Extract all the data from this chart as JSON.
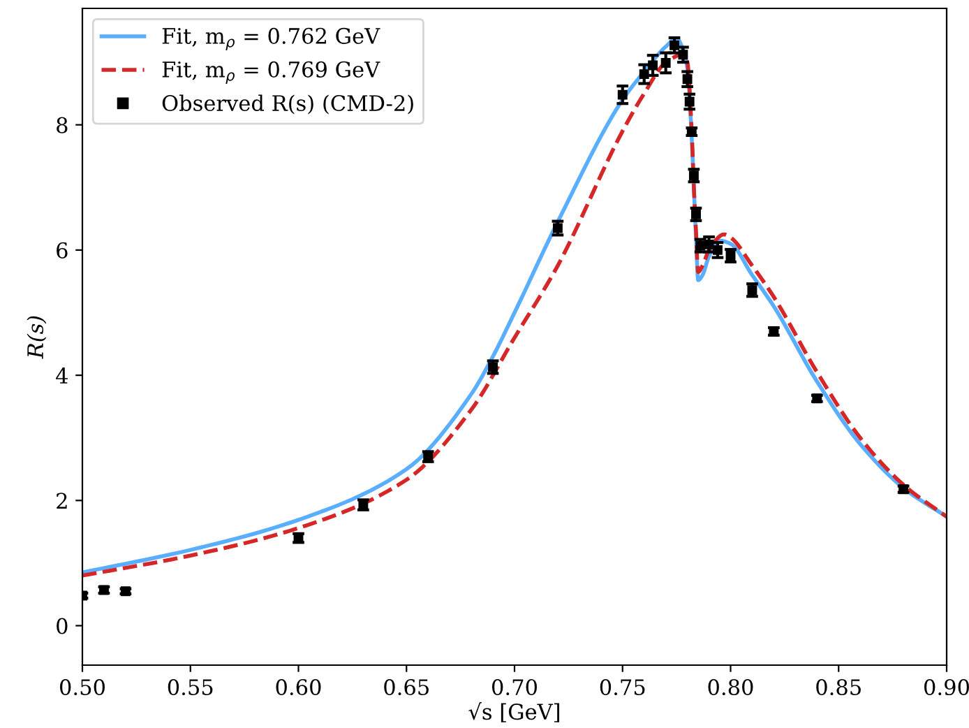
{
  "chart_data": {
    "type": "line",
    "xlabel": "√s [GeV]",
    "ylabel": "R(s)",
    "xlim": [
      0.5,
      0.9
    ],
    "ylim": [
      -0.63,
      9.86
    ],
    "xticks": [
      {
        "value": 0.5,
        "label": "0.50"
      },
      {
        "value": 0.55,
        "label": "0.55"
      },
      {
        "value": 0.6,
        "label": "0.60"
      },
      {
        "value": 0.65,
        "label": "0.65"
      },
      {
        "value": 0.7,
        "label": "0.70"
      },
      {
        "value": 0.75,
        "label": "0.75"
      },
      {
        "value": 0.8,
        "label": "0.80"
      },
      {
        "value": 0.85,
        "label": "0.85"
      },
      {
        "value": 0.9,
        "label": "0.90"
      }
    ],
    "yticks": [
      0,
      2,
      4,
      6,
      8
    ],
    "grid": false,
    "legend": "top left",
    "series": [
      {
        "name": "Fit, m$_{ρ}$ = 0.762 GeV",
        "color": "#5aaeff",
        "line_style": "solid",
        "marker": "none",
        "x": [
          0.5,
          0.55,
          0.6,
          0.65,
          0.68,
          0.69,
          0.7,
          0.72,
          0.75,
          0.76,
          0.77,
          0.775,
          0.778,
          0.78,
          0.782,
          0.783,
          0.784,
          0.785,
          0.787,
          0.79,
          0.795,
          0.8,
          0.81,
          0.82,
          0.84,
          0.86,
          0.88,
          0.9
        ],
        "values": [
          0.85,
          1.21,
          1.69,
          2.5,
          3.7,
          4.3,
          5.0,
          6.45,
          8.4,
          8.85,
          9.25,
          9.38,
          9.2,
          8.9,
          7.8,
          7.0,
          6.2,
          5.52,
          5.6,
          5.9,
          6.15,
          6.1,
          5.6,
          5.1,
          3.9,
          2.9,
          2.2,
          1.74
        ]
      },
      {
        "name": "Fit, m$_{ρ}$ = 0.769 GeV",
        "color": "#d62728",
        "line_style": "dashed",
        "marker": "none",
        "x": [
          0.5,
          0.55,
          0.6,
          0.65,
          0.68,
          0.7,
          0.72,
          0.75,
          0.76,
          0.77,
          0.775,
          0.778,
          0.78,
          0.782,
          0.783,
          0.784,
          0.785,
          0.787,
          0.79,
          0.797,
          0.8,
          0.81,
          0.82,
          0.84,
          0.86,
          0.88,
          0.9
        ],
        "values": [
          0.8,
          1.12,
          1.56,
          2.33,
          3.45,
          4.6,
          5.75,
          7.9,
          8.5,
          9.0,
          9.1,
          9.15,
          9.0,
          7.9,
          7.0,
          6.3,
          5.65,
          5.75,
          6.0,
          6.25,
          6.2,
          5.75,
          5.25,
          4.05,
          3.0,
          2.25,
          1.74
        ]
      },
      {
        "name": "Observed R(s) (CMD-2)",
        "type": "scatter",
        "color": "#000000",
        "marker": "square",
        "x": [
          0.5,
          0.51,
          0.52,
          0.6,
          0.63,
          0.66,
          0.69,
          0.72,
          0.75,
          0.76,
          0.764,
          0.77,
          0.774,
          0.778,
          0.78,
          0.781,
          0.782,
          0.783,
          0.784,
          0.786,
          0.79,
          0.794,
          0.8,
          0.81,
          0.82,
          0.84,
          0.88
        ],
        "values": [
          0.48,
          0.57,
          0.55,
          1.4,
          1.93,
          2.7,
          4.13,
          6.35,
          8.48,
          8.81,
          8.95,
          8.99,
          9.27,
          9.12,
          8.73,
          8.37,
          7.89,
          7.19,
          6.57,
          6.07,
          6.09,
          6.0,
          5.91,
          5.36,
          4.7,
          3.63,
          2.18
        ],
        "errors": [
          0.04,
          0.05,
          0.04,
          0.07,
          0.08,
          0.08,
          0.1,
          0.11,
          0.14,
          0.15,
          0.16,
          0.16,
          0.12,
          0.12,
          0.12,
          0.12,
          0.06,
          0.1,
          0.1,
          0.1,
          0.12,
          0.12,
          0.1,
          0.1,
          0.06,
          0.05,
          0.05
        ]
      }
    ]
  }
}
